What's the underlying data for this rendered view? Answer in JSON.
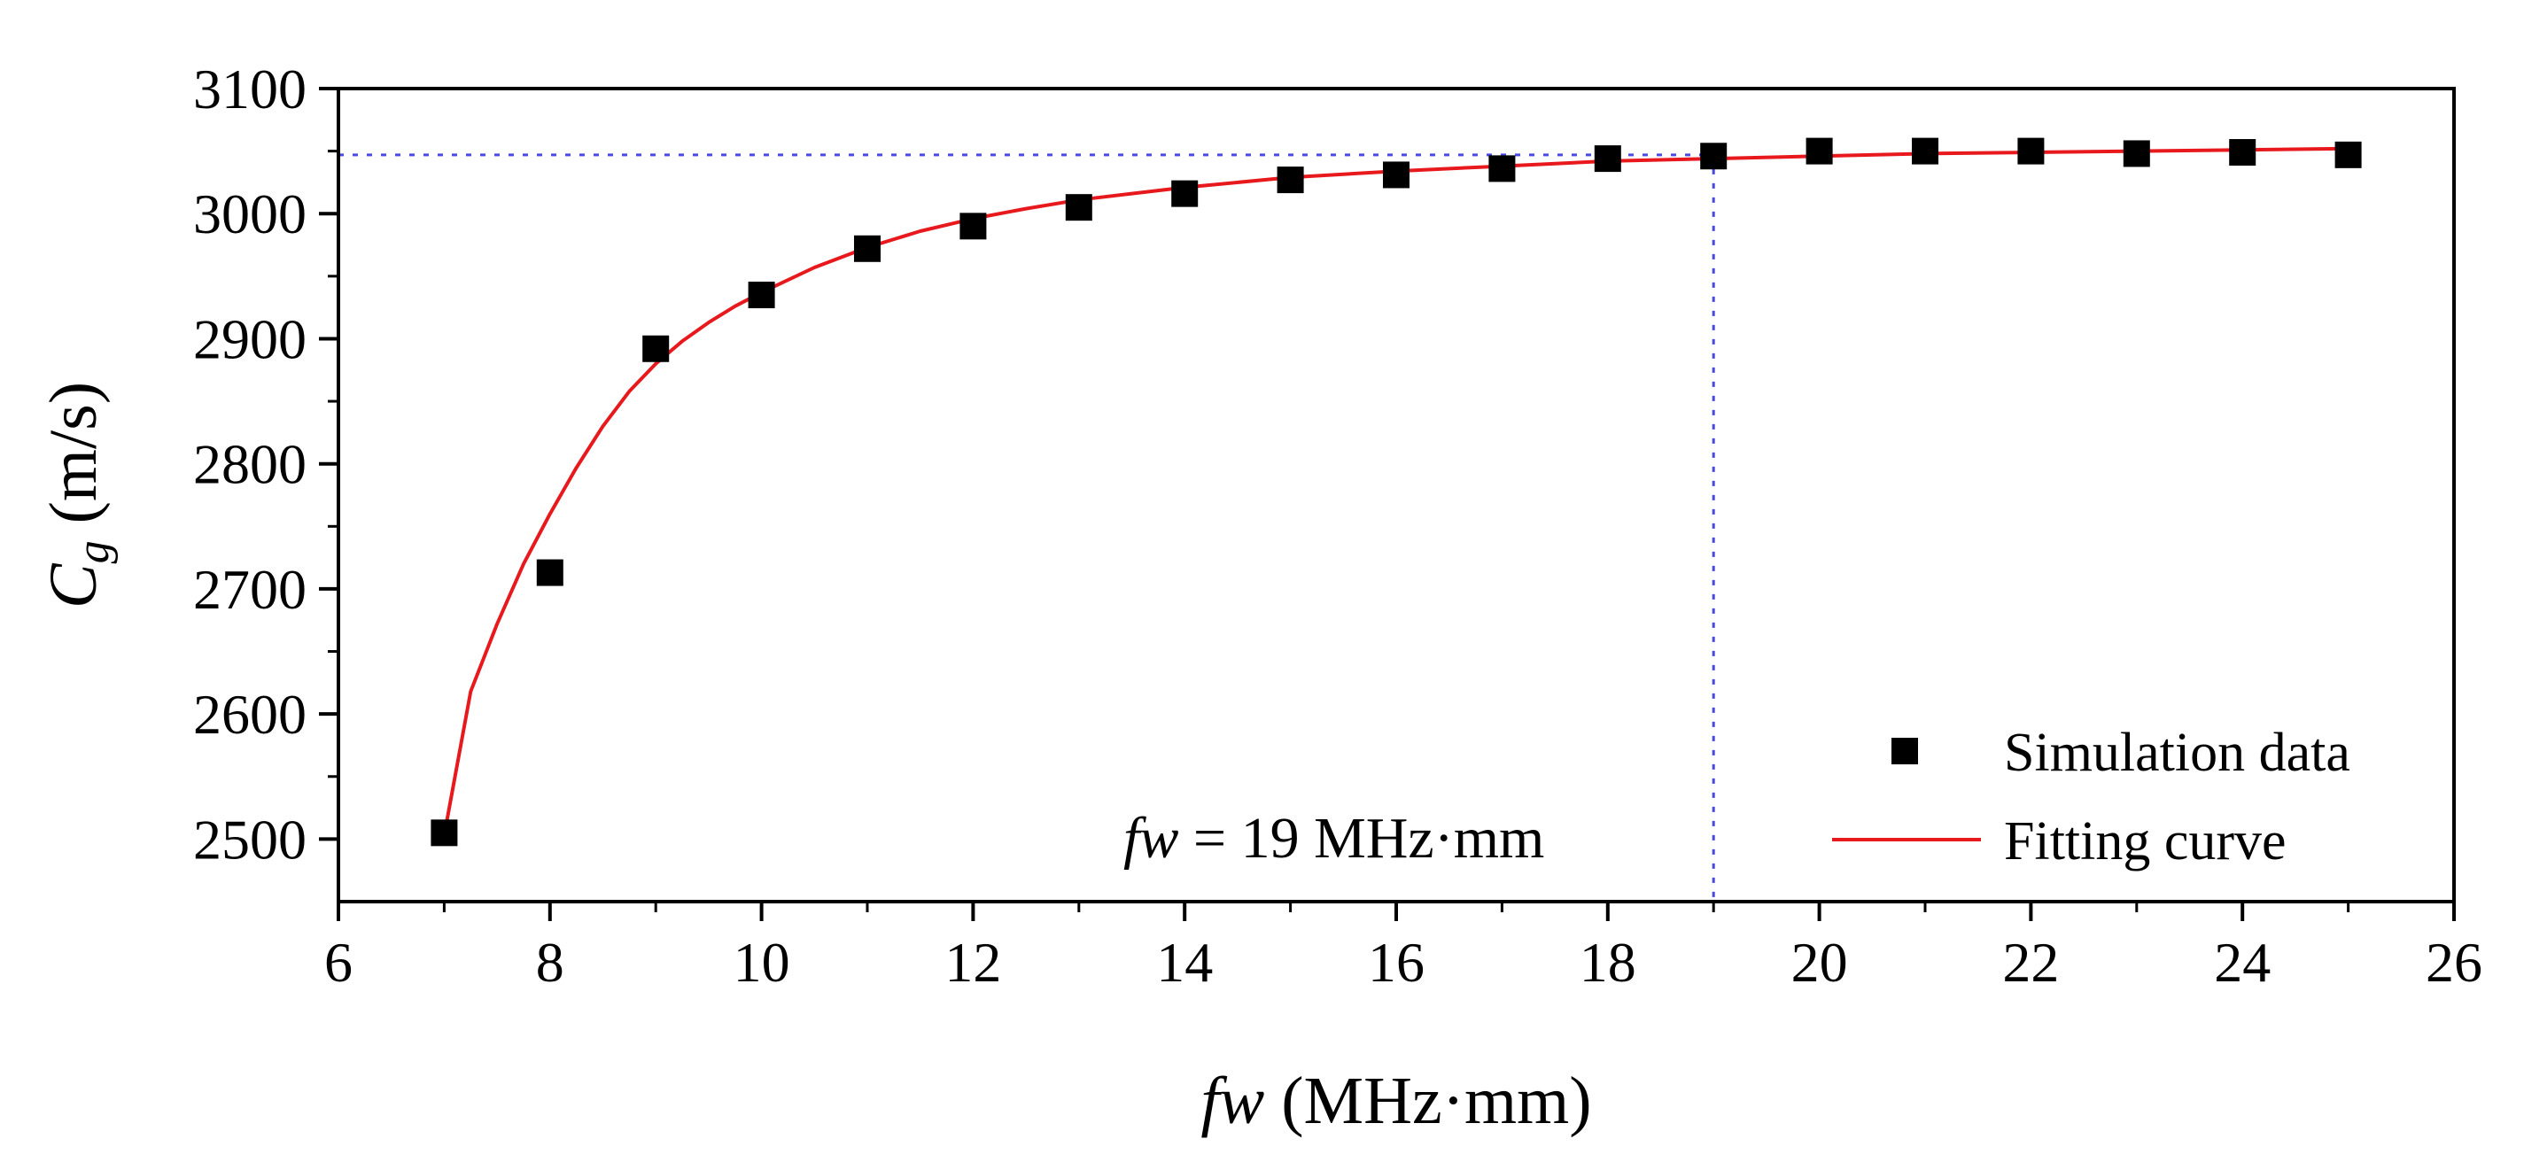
{
  "chart_data": {
    "type": "scatter",
    "title": "",
    "xlabel": {
      "italic": "fw",
      "rest": " (MHz·mm)"
    },
    "ylabel": {
      "symbol": "C",
      "subscript": "g",
      "units": " (m/s)"
    },
    "xlim": [
      6,
      26
    ],
    "ylim": [
      2450,
      3100
    ],
    "xticks": [
      6,
      8,
      10,
      12,
      14,
      16,
      18,
      20,
      22,
      24,
      26
    ],
    "yticks": [
      2500,
      2600,
      2700,
      2800,
      2900,
      3000,
      3100
    ],
    "series": [
      {
        "name": "Simulation data",
        "kind": "scatter",
        "marker": "square",
        "color": "#000000",
        "x": [
          7,
          8,
          9,
          10,
          11,
          12,
          13,
          14,
          15,
          16,
          17,
          18,
          19,
          20,
          21,
          22,
          23,
          24,
          25
        ],
        "y": [
          2505,
          2713,
          2892,
          2935,
          2972,
          2990,
          3005,
          3016,
          3027,
          3031,
          3036,
          3044,
          3046,
          3050,
          3050,
          3050,
          3048,
          3049,
          3047
        ]
      },
      {
        "name": "Fitting curve",
        "kind": "line",
        "color": "#e8191d",
        "x": [
          7,
          7.25,
          7.5,
          7.75,
          8,
          8.25,
          8.5,
          8.75,
          9,
          9.25,
          9.5,
          9.75,
          10,
          10.5,
          11,
          11.5,
          12,
          12.5,
          13,
          13.5,
          14,
          15,
          16,
          17,
          18,
          19,
          20,
          21,
          22,
          23,
          24,
          25
        ],
        "y": [
          2503,
          2618,
          2672,
          2720,
          2760,
          2797,
          2830,
          2858,
          2880,
          2898,
          2913,
          2926,
          2937,
          2957,
          2973,
          2986,
          2996,
          3004,
          3011,
          3016,
          3021,
          3029,
          3034,
          3038,
          3042,
          3044,
          3046,
          3048,
          3049,
          3050,
          3051,
          3052
        ]
      }
    ],
    "reference_lines": {
      "color": "#4a4ae0",
      "horizontal_y": 3047,
      "vertical_x": 19
    },
    "annotation": {
      "italic": "fw",
      "rest": " = 19 MHz·mm"
    },
    "legend": {
      "position": "bottom-right",
      "entries": [
        "Simulation data",
        "Fitting curve"
      ]
    },
    "grid": false
  }
}
